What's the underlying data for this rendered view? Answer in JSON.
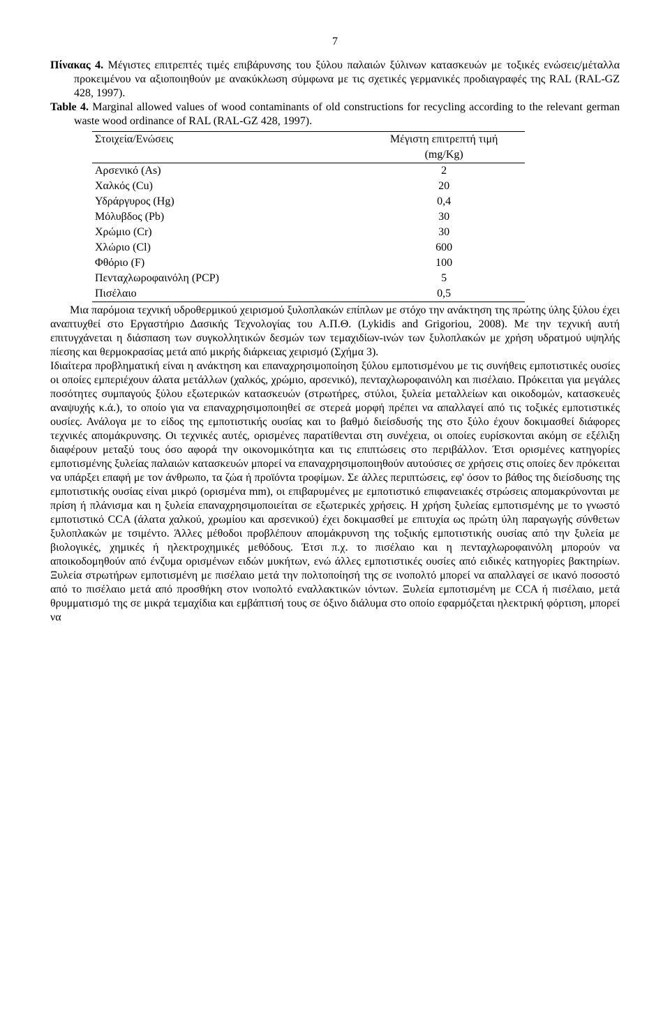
{
  "page_number": "7",
  "caption_gr_lead": "Πίνακας 4.",
  "caption_gr_rest": " Μέγιστες επιτρεπτές τιμές επιβάρυνσης του ξύλου παλαιών ξύλινων κατασκευών με τοξικές ενώσεις/μέταλλα προκειμένου να αξιοποιηθούν με ανακύκλωση σύμφωνα με τις σχετικές γερμανικές προδιαγραφές της RAL (RAL-GZ 428, 1997).",
  "caption_en_lead": "Table 4.",
  "caption_en_rest": " Marginal allowed values of wood contaminants of old constructions for recycling according to the relevant german waste wood ordinance of RAL (RAL-GZ 428, 1997).",
  "table": {
    "header_left": "Στοιχεία/Ενώσεις",
    "header_right_1": "Μέγιστη επιτρεπτή τιμή",
    "header_right_2": "(mg/Kg)",
    "rows": [
      {
        "label": "Αρσενικό (As)",
        "value": "2"
      },
      {
        "label": "Χαλκός  (Cu)",
        "value": "20"
      },
      {
        "label": "Υδράργυρος (Hg)",
        "value": "0,4"
      },
      {
        "label": "Μόλυβδος (Pb)",
        "value": "30"
      },
      {
        "label": "Χρώμιο  (Cr)",
        "value": "30"
      },
      {
        "label": "Χλώριο (Cl)",
        "value": "600"
      },
      {
        "label": "Φθόριο  (F)",
        "value": "100"
      },
      {
        "label": "Πενταχλωροφαινόλη (PCP)",
        "value": "5"
      },
      {
        "label": "Πισέλαιο",
        "value": "0,5"
      }
    ]
  },
  "para1": "Μια παρόμοια τεχνική υδροθερμικού χειρισμού ξυλοπλακών επίπλων με στόχο την ανάκτηση της πρώτης ύλης ξύλου έχει αναπτυχθεί στο Εργαστήριο Δασικής Τεχνολογίας του Α.Π.Θ. (Lykidis and Grigoriou, 2008). Με την τεχνική αυτή επιτυγχάνεται η διάσπαση των συγκολλητικών δεσμών των τεμαχιδίων-ινών των ξυλοπλακών με χρήση υδρατμού υψηλής πίεσης και θερμοκρασίας μετά από μικρής διάρκειας χειρισμό (Σχήμα 3).",
  "para2": "Ιδιαίτερα προβληματική είναι η ανάκτηση και επαναχρησιμοποίηση ξύλου εμποτισμένου με τις συνήθεις εμποτιστικές ουσίες οι οποίες εμπεριέχουν άλατα μετάλλων (χαλκός, χρώμιο, αρσενικό), πενταχλωροφαινόλη και πισέλαιο. Πρόκειται για μεγάλες ποσότητες συμπαγούς ξύλου εξωτερικών κατασκευών (στρωτήρες, στύλοι, ξυλεία μεταλλείων και οικοδομών, κατασκευές αναψυχής κ.ά.), το οποίο για να επαναχρησιμοποιηθεί σε στερεά μορφή πρέπει να απαλλαγεί από τις τοξικές εμποτιστικές ουσίες. Ανάλογα με το είδος της εμποτιστικής ουσίας και το βαθμό διείσδυσής της στο ξύλο έχουν δοκιμασθεί διάφορες τεχνικές απομάκρυνσης. Οι τεχνικές αυτές, ορισμένες παρατίθενται στη συνέχεια, οι οποίες ευρίσκονται ακόμη σε εξέλιξη διαφέρουν μεταξύ τους όσο αφορά την οικονομικότητα και τις επιπτώσεις στο περιβάλλον. Έτσι ορισμένες κατηγορίες εμποτισμένης ξυλείας παλαιών κατασκευών μπορεί να επαναχρησιμοποιηθούν αυτούσιες σε χρήσεις στις οποίες δεν πρόκειται να υπάρξει επαφή με τον άνθρωπο, τα ζώα ή προϊόντα τροφίμων. Σε άλλες περιπτώσεις, εφ' όσον το βάθος της διείσδυσης της εμποτιστικής ουσίας είναι μικρό (ορισμένα mm), οι επιβαρυμένες με εμποτιστικό επιφανειακές στρώσεις απομακρύνονται με πρίση ή πλάνισμα και η ξυλεία επαναχρησιμοποιείται σε εξωτερικές χρήσεις. Η χρήση ξυλείας εμποτισμένης με το γνωστό εμποτιστικό CCA (άλατα χαλκού, χρωμίου και αρσενικού) έχει δοκιμασθεί με επιτυχία ως πρώτη ύλη παραγωγής σύνθετων ξυλοπλακών με τσιμέντο. Άλλες μέθοδοι προβλέπουν απομάκρυνση της τοξικής εμποτιστικής ουσίας από την ξυλεία με βιολογικές, χημικές ή ηλεκτροχημικές μεθόδους. Έτσι π.χ. το πισέλαιο και η πενταχλωροφαινόλη μπορούν να αποικοδομηθούν από ένζυμα ορισμένων ειδών μυκήτων, ενώ άλλες εμποτιστικές ουσίες από ειδικές κατηγορίες βακτηρίων. Ξυλεία στρωτήρων εμποτισμένη με πισέλαιο μετά την πολτοποίησή της σε ινοπολτό μπορεί να απαλλαγεί σε ικανό ποσοστό από το πισέλαιο μετά από προσθήκη στον ινοπολτό εναλλακτικών ιόντων. Ξυλεία εμποτισμένη με CCA ή πισέλαιο, μετά θρυμματισμό της σε μικρά τεμαχίδια και εμβάπτισή τους σε όξινο διάλυμα στο οποίο εφαρμόζεται ηλεκτρική φόρτιση, μπορεί να"
}
